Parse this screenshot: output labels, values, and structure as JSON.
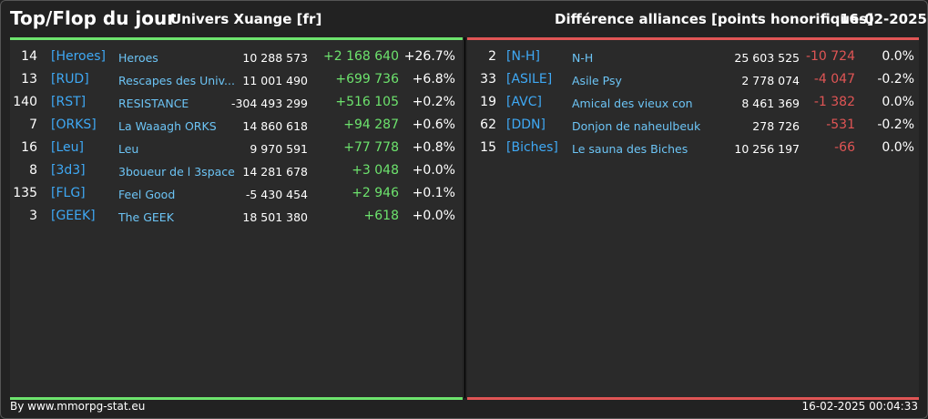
{
  "header": {
    "title": "Top/Flop du jour",
    "subtitle": "Univers Xuange [fr]",
    "right_title": "Différence alliances [points honorifiques]",
    "date": "16-02-2025"
  },
  "top": [
    {
      "rank": "14",
      "tag": "[Heroes]",
      "name": "Heroes",
      "points": "10 288 573",
      "diff": "+2 168 640",
      "pct": "+26.7%"
    },
    {
      "rank": "13",
      "tag": "[RUD]",
      "name": "Rescapes des Univ...",
      "points": "11 001 490",
      "diff": "+699 736",
      "pct": "+6.8%"
    },
    {
      "rank": "140",
      "tag": "[RST]",
      "name": "RESISTANCE",
      "points": "-304 493 299",
      "diff": "+516 105",
      "pct": "+0.2%"
    },
    {
      "rank": "7",
      "tag": "[ORKS]",
      "name": "La Waaagh ORKS",
      "points": "14 860 618",
      "diff": "+94 287",
      "pct": "+0.6%"
    },
    {
      "rank": "16",
      "tag": "[Leu]",
      "name": "Leu",
      "points": "9 970 591",
      "diff": "+77 778",
      "pct": "+0.8%"
    },
    {
      "rank": "8",
      "tag": "[3d3]",
      "name": "3boueur de l 3space",
      "points": "14 281 678",
      "diff": "+3 048",
      "pct": "+0.0%"
    },
    {
      "rank": "135",
      "tag": "[FLG]",
      "name": "Feel Good",
      "points": "-5 430 454",
      "diff": "+2 946",
      "pct": "+0.1%"
    },
    {
      "rank": "3",
      "tag": "[GEEK]",
      "name": "The GEEK",
      "points": "18 501 380",
      "diff": "+618",
      "pct": "+0.0%"
    }
  ],
  "flop": [
    {
      "rank": "2",
      "tag": "[N-H]",
      "name": "N-H",
      "points": "25 603 525",
      "diff": "-10 724",
      "pct": "0.0%"
    },
    {
      "rank": "33",
      "tag": "[ASILE]",
      "name": "Asile Psy",
      "points": "2 778 074",
      "diff": "-4 047",
      "pct": "-0.2%"
    },
    {
      "rank": "19",
      "tag": "[AVC]",
      "name": "Amical des vieux con",
      "points": "8 461 369",
      "diff": "-1 382",
      "pct": "0.0%"
    },
    {
      "rank": "62",
      "tag": "[DDN]",
      "name": "Donjon de naheulbeuk",
      "points": "278 726",
      "diff": "-531",
      "pct": "-0.2%"
    },
    {
      "rank": "15",
      "tag": "[Biches]",
      "name": "Le sauna des Biches",
      "points": "10 256 197",
      "diff": "-66",
      "pct": "0.0%"
    }
  ],
  "footer": {
    "left": "By www.mmorpg-stat.eu",
    "right": "16-02-2025 00:04:33"
  },
  "colors": {
    "positive": "#6de36d",
    "negative": "#e05555",
    "tag": "#3fa9f5"
  }
}
